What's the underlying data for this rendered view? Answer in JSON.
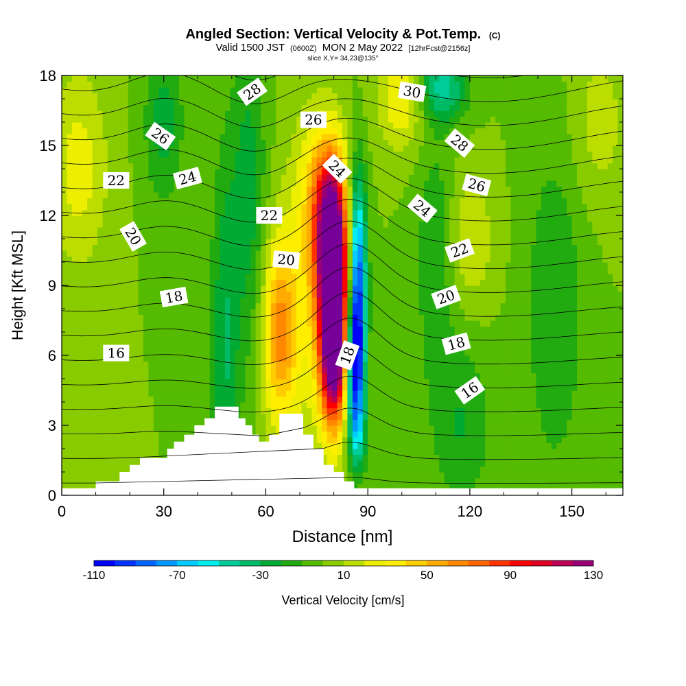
{
  "chart_data": {
    "type": "heatmap",
    "title": "Angled Section: Vertical Velocity & Pot.Temp.",
    "title_unit": "(C)",
    "subtitle_parts": [
      "Valid 1500 JST",
      "(0600Z)",
      "MON 2 May 2022",
      "[12hrFcst@2156z]"
    ],
    "slice_label": "slice X,Y= 34,23@135°",
    "xlabel": "Distance [nm]",
    "ylabel": "Height [Kft MSL]",
    "xlim": [
      0,
      165
    ],
    "ylim": [
      0,
      18
    ],
    "x_ticks": [
      0,
      30,
      60,
      90,
      120,
      150
    ],
    "y_ticks": [
      0,
      3,
      6,
      9,
      12,
      15,
      18
    ],
    "colorbar": {
      "label": "Vertical Velocity [cm/s]",
      "min": -110,
      "max": 130,
      "step": 10,
      "tick_labels": [
        "-110",
        "-70",
        "-30",
        "10",
        "50",
        "90",
        "130"
      ],
      "colors": [
        "#0000ff",
        "#0033ff",
        "#0066ff",
        "#0099ff",
        "#00ccff",
        "#00eeee",
        "#00cc99",
        "#00bb66",
        "#00aa33",
        "#22aa11",
        "#55bb00",
        "#88cc00",
        "#bbdd00",
        "#eeee00",
        "#ffee00",
        "#ffcc00",
        "#ffaa00",
        "#ff8800",
        "#ff6600",
        "#ff3300",
        "#ff0000",
        "#dd0022",
        "#bb0055",
        "#990077",
        "#770099"
      ]
    },
    "velocity_features": [
      {
        "x": 80,
        "y": 8.5,
        "sx": 2.8,
        "sy": 3.2,
        "value": 125
      },
      {
        "x": 79,
        "y": 10.5,
        "sx": 3.5,
        "sy": 2.5,
        "value": 85
      },
      {
        "x": 80,
        "y": 5.5,
        "sx": 3.0,
        "sy": 2.0,
        "value": 70
      },
      {
        "x": 64,
        "y": 7.0,
        "sx": 3.5,
        "sy": 2.8,
        "value": 60
      },
      {
        "x": 77,
        "y": 13.0,
        "sx": 4.0,
        "sy": 2.0,
        "value": 40
      },
      {
        "x": 72,
        "y": 9.0,
        "sx": 5.0,
        "sy": 5.0,
        "value": 25
      },
      {
        "x": 86,
        "y": 5.5,
        "sx": 1.8,
        "sy": 2.0,
        "value": -85
      },
      {
        "x": 87,
        "y": 8.0,
        "sx": 1.8,
        "sy": 3.0,
        "value": -65
      },
      {
        "x": 87,
        "y": 11.0,
        "sx": 1.8,
        "sy": 2.5,
        "value": -40
      },
      {
        "x": 87,
        "y": 2.5,
        "sx": 2.0,
        "sy": 1.2,
        "value": -30
      },
      {
        "x": 48,
        "y": 6.0,
        "sx": 3.0,
        "sy": 6.0,
        "value": -30
      },
      {
        "x": 55,
        "y": 13.0,
        "sx": 3.5,
        "sy": 5.0,
        "value": -25
      },
      {
        "x": 30,
        "y": 16.0,
        "sx": 4.0,
        "sy": 2.5,
        "value": -25
      },
      {
        "x": 112,
        "y": 17.5,
        "sx": 5.0,
        "sy": 1.0,
        "value": -45
      },
      {
        "x": 110,
        "y": 10.0,
        "sx": 4.0,
        "sy": 4.0,
        "value": -20
      },
      {
        "x": 118,
        "y": 3.0,
        "sx": 6.0,
        "sy": 2.5,
        "value": -20
      },
      {
        "x": 145,
        "y": 8.0,
        "sx": 6.0,
        "sy": 5.0,
        "value": -20
      },
      {
        "x": 100,
        "y": 17.0,
        "sx": 5.0,
        "sy": 1.5,
        "value": 30
      },
      {
        "x": 5,
        "y": 14.0,
        "sx": 6.0,
        "sy": 3.0,
        "value": 25
      },
      {
        "x": 120,
        "y": 11.0,
        "sx": 5.0,
        "sy": 2.0,
        "value": 20
      },
      {
        "x": 158,
        "y": 16.0,
        "sx": 6.0,
        "sy": 2.5,
        "value": 15
      }
    ],
    "velocity_background": 0,
    "terrain": [
      {
        "x": 0,
        "h": 0.3
      },
      {
        "x": 9,
        "h": 0.3
      },
      {
        "x": 10,
        "h": 0.6
      },
      {
        "x": 16,
        "h": 0.6
      },
      {
        "x": 17,
        "h": 1.0
      },
      {
        "x": 20,
        "h": 1.3
      },
      {
        "x": 23,
        "h": 1.6
      },
      {
        "x": 30,
        "h": 1.6
      },
      {
        "x": 31,
        "h": 2.0
      },
      {
        "x": 33,
        "h": 2.3
      },
      {
        "x": 36,
        "h": 2.6
      },
      {
        "x": 39,
        "h": 3.0
      },
      {
        "x": 42,
        "h": 3.3
      },
      {
        "x": 45,
        "h": 3.8
      },
      {
        "x": 51,
        "h": 3.8
      },
      {
        "x": 52,
        "h": 3.3
      },
      {
        "x": 54,
        "h": 3.0
      },
      {
        "x": 56,
        "h": 2.6
      },
      {
        "x": 58,
        "h": 2.3
      },
      {
        "x": 61,
        "h": 2.6
      },
      {
        "x": 64,
        "h": 3.5
      },
      {
        "x": 70,
        "h": 3.5
      },
      {
        "x": 71,
        "h": 2.6
      },
      {
        "x": 74,
        "h": 2.0
      },
      {
        "x": 77,
        "h": 1.3
      },
      {
        "x": 80,
        "h": 1.0
      },
      {
        "x": 83,
        "h": 0.6
      },
      {
        "x": 86,
        "h": 0.3
      },
      {
        "x": 165,
        "h": 0.3
      }
    ],
    "contour_levels": [
      16,
      18,
      20,
      22,
      24,
      26,
      28,
      30
    ],
    "contour_labels": [
      {
        "text": "16",
        "x": 16,
        "y": 6.1,
        "angle": 0
      },
      {
        "text": "16",
        "x": 120,
        "y": 4.5,
        "angle": -35
      },
      {
        "text": "18",
        "x": 33,
        "y": 8.5,
        "angle": -10
      },
      {
        "text": "18",
        "x": 84,
        "y": 6.0,
        "angle": -70
      },
      {
        "text": "18",
        "x": 116,
        "y": 6.5,
        "angle": -15
      },
      {
        "text": "20",
        "x": 21,
        "y": 11.1,
        "angle": 60
      },
      {
        "text": "20",
        "x": 66,
        "y": 10.1,
        "angle": 5
      },
      {
        "text": "20",
        "x": 113,
        "y": 8.5,
        "angle": -20
      },
      {
        "text": "22",
        "x": 16,
        "y": 13.5,
        "angle": 0
      },
      {
        "text": "22",
        "x": 61,
        "y": 12.0,
        "angle": 0
      },
      {
        "text": "22",
        "x": 117,
        "y": 10.5,
        "angle": -20
      },
      {
        "text": "24",
        "x": 37,
        "y": 13.6,
        "angle": -15
      },
      {
        "text": "24",
        "x": 81,
        "y": 14.0,
        "angle": 45
      },
      {
        "text": "24",
        "x": 106,
        "y": 12.3,
        "angle": 40
      },
      {
        "text": "26",
        "x": 29,
        "y": 15.4,
        "angle": 35
      },
      {
        "text": "26",
        "x": 74,
        "y": 16.1,
        "angle": 0
      },
      {
        "text": "26",
        "x": 122,
        "y": 13.3,
        "angle": 15
      },
      {
        "text": "28",
        "x": 56,
        "y": 17.3,
        "angle": -35
      },
      {
        "text": "28",
        "x": 117,
        "y": 15.1,
        "angle": 40
      },
      {
        "text": "30",
        "x": 103,
        "y": 17.3,
        "angle": 10
      }
    ]
  }
}
